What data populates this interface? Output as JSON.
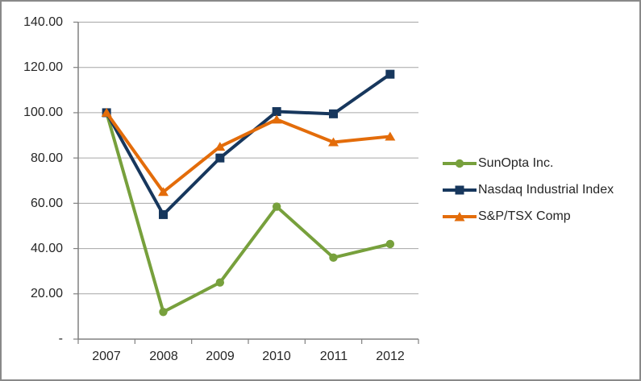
{
  "frame": {
    "background_color": "#FFFFFF",
    "border_color": "#898989"
  },
  "chart_data": {
    "type": "line",
    "title": "",
    "xlabel": "",
    "ylabel": "",
    "categories": [
      "2007",
      "2008",
      "2009",
      "2010",
      "2011",
      "2012"
    ],
    "series": [
      {
        "name": "SunOpta Inc.",
        "color": "#77A03C",
        "marker": "circle",
        "values": [
          100,
          12,
          25,
          58.5,
          36,
          42
        ]
      },
      {
        "name": "Nasdaq Industrial Index",
        "color": "#17375D",
        "marker": "square",
        "values": [
          100,
          55,
          80,
          100.5,
          99.5,
          117
        ]
      },
      {
        "name": "S&P/TSX Comp",
        "color": "#E36C0A",
        "marker": "triangle",
        "values": [
          100,
          65,
          85,
          97,
          87,
          89.5
        ]
      }
    ],
    "ylim": [
      0,
      140
    ],
    "y_tick_values": [
      140,
      120,
      100,
      80,
      60,
      40,
      20,
      0
    ],
    "y_tick_labels": [
      "140.00",
      "120.00",
      "100.00",
      "80.00",
      "60.00",
      "40.00",
      "20.00",
      "-"
    ],
    "grid": true,
    "legend_position": "right",
    "gridline_color": "#A6A6A6",
    "axis_color": "#808080",
    "text_color": "#262626"
  }
}
